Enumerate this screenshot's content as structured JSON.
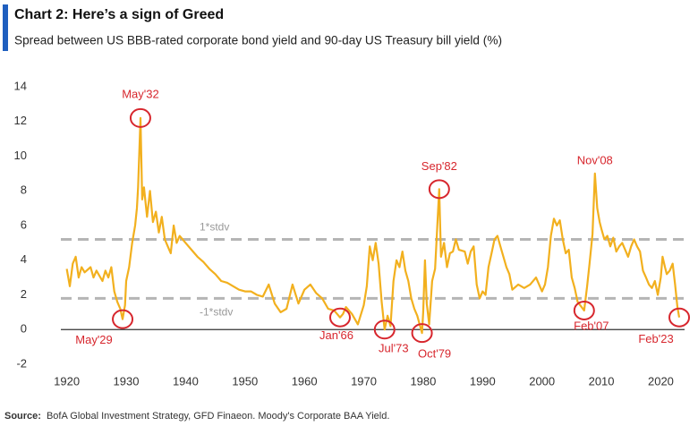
{
  "chart_data": {
    "type": "line",
    "title": "Chart 2: Here’s a sign of Greed",
    "subtitle": "Spread between US BBB-rated corporate bond yield and 90-day US Treasury bill yield (%)",
    "source_label": "Source:",
    "source": "BofA Global Investment Strategy, GFD Finaeon.  Moody's Corporate BAA Yield.",
    "xlim": [
      1919,
      2024
    ],
    "xticks": [
      1920,
      1930,
      1940,
      1950,
      1960,
      1970,
      1980,
      1990,
      2000,
      2010,
      2020
    ],
    "ylim": [
      -2,
      14
    ],
    "yticks": [
      -2,
      0,
      2,
      4,
      6,
      8,
      10,
      12,
      14
    ],
    "x": [
      1920,
      1920.5,
      1921,
      1921.5,
      1922,
      1922.5,
      1923,
      1924,
      1924.5,
      1925,
      1926,
      1926.5,
      1927,
      1927.5,
      1928,
      1928.5,
      1929,
      1929.4,
      1929.8,
      1930,
      1930.5,
      1931,
      1931.5,
      1931.8,
      1932,
      1932.4,
      1932.7,
      1933,
      1933.5,
      1934,
      1934.5,
      1935,
      1935.5,
      1936,
      1936.5,
      1937,
      1937.5,
      1938,
      1938.5,
      1939,
      1940,
      1941,
      1942,
      1943,
      1944,
      1945,
      1946,
      1947,
      1948,
      1949,
      1950,
      1951,
      1952,
      1953,
      1954,
      1955,
      1956,
      1957,
      1958,
      1959,
      1960,
      1961,
      1962,
      1963,
      1964,
      1965,
      1966,
      1966.5,
      1967,
      1968,
      1969,
      1970,
      1970.5,
      1971,
      1971.5,
      1972,
      1972.5,
      1973,
      1973.5,
      1974,
      1974.5,
      1975,
      1975.5,
      1976,
      1976.5,
      1977,
      1977.5,
      1978,
      1978.5,
      1979,
      1979.8,
      1980,
      1980.3,
      1980.6,
      1981,
      1981.5,
      1982,
      1982.7,
      1983,
      1983.5,
      1984,
      1984.5,
      1985,
      1985.5,
      1986,
      1987,
      1987.5,
      1988,
      1988.5,
      1989,
      1989.5,
      1990,
      1990.5,
      1991,
      1991.5,
      1992,
      1992.5,
      1993,
      1994,
      1994.5,
      1995,
      1996,
      1997,
      1998,
      1999,
      2000,
      2000.5,
      2001,
      2001.5,
      2002,
      2002.5,
      2003,
      2003.5,
      2004,
      2004.5,
      2005,
      2005.5,
      2006,
      2007.1,
      2007.6,
      2008,
      2008.5,
      2008.9,
      2009.3,
      2009.7,
      2010,
      2010.5,
      2011,
      2011.5,
      2012,
      2012.5,
      2013,
      2013.5,
      2014,
      2014.5,
      2015,
      2015.5,
      2016,
      2016.5,
      2017,
      2017.5,
      2018,
      2018.5,
      2019,
      2019.5,
      2020,
      2020.3,
      2020.7,
      2021,
      2021.5,
      2022,
      2022.4,
      2022.8,
      2023.1
    ],
    "series": [
      {
        "color": "#f2b01e",
        "values": [
          3.5,
          2.5,
          3.8,
          4.2,
          3.0,
          3.6,
          3.3,
          3.6,
          3.0,
          3.4,
          2.8,
          3.4,
          3.0,
          3.6,
          2.2,
          1.6,
          1.2,
          0.6,
          1.4,
          2.8,
          3.6,
          5.0,
          6.0,
          7.0,
          8.2,
          12.2,
          7.5,
          8.2,
          6.5,
          8.0,
          6.2,
          6.8,
          5.6,
          6.5,
          5.2,
          4.8,
          4.4,
          6.0,
          5.0,
          5.4,
          5.0,
          4.6,
          4.2,
          3.9,
          3.5,
          3.2,
          2.8,
          2.7,
          2.5,
          2.3,
          2.2,
          2.2,
          2.0,
          1.9,
          2.6,
          1.5,
          1.0,
          1.2,
          2.6,
          1.5,
          2.3,
          2.6,
          2.1,
          1.8,
          1.2,
          1.1,
          0.7,
          0.9,
          1.3,
          0.9,
          0.3,
          1.4,
          2.5,
          4.8,
          4.0,
          5.0,
          3.8,
          1.6,
          0.0,
          0.8,
          0.2,
          2.8,
          4.0,
          3.6,
          4.5,
          3.4,
          2.8,
          1.8,
          1.2,
          0.8,
          -0.2,
          1.0,
          4.0,
          1.5,
          0.3,
          2.8,
          3.5,
          8.1,
          4.2,
          5.0,
          3.6,
          4.4,
          4.5,
          5.2,
          4.6,
          4.5,
          3.8,
          4.5,
          4.8,
          2.6,
          1.8,
          2.2,
          2.0,
          3.6,
          4.4,
          5.2,
          5.4,
          4.8,
          3.6,
          3.2,
          2.3,
          2.6,
          2.4,
          2.6,
          3.0,
          2.2,
          2.6,
          3.6,
          5.4,
          6.4,
          6.0,
          6.3,
          5.2,
          4.4,
          4.6,
          3.0,
          2.4,
          1.6,
          1.1,
          2.5,
          3.8,
          5.5,
          9.0,
          7.0,
          6.2,
          5.8,
          5.2,
          5.4,
          4.8,
          5.3,
          4.5,
          4.8,
          5.0,
          4.6,
          4.2,
          4.8,
          5.2,
          4.8,
          4.5,
          3.4,
          3.0,
          2.6,
          2.4,
          2.8,
          2.0,
          3.0,
          4.2,
          3.6,
          3.2,
          3.4,
          3.8,
          2.6,
          1.3,
          0.7
        ]
      }
    ],
    "reference_lines": [
      {
        "label": "1*stdv",
        "value": 5.2,
        "color": "#b5b5b5"
      },
      {
        "label": "-1*stdv",
        "value": 1.8,
        "color": "#b5b5b5"
      }
    ],
    "annotation_color": "#d7262d",
    "annotations": [
      {
        "label": "May'32",
        "x": 1932.4,
        "y": 12.2,
        "circled": true
      },
      {
        "label": "May'29",
        "x": 1929.4,
        "y": 0.6,
        "circled": true
      },
      {
        "label": "Jan'66",
        "x": 1966,
        "y": 0.7,
        "circled": true
      },
      {
        "label": "Jul'73",
        "x": 1973.5,
        "y": 0.0,
        "circled": true
      },
      {
        "label": "Oct'79",
        "x": 1979.8,
        "y": -0.2,
        "circled": true
      },
      {
        "label": "Sep'82",
        "x": 1982.7,
        "y": 8.1,
        "circled": true
      },
      {
        "label": "Nov'08",
        "x": 2008.9,
        "y": 9.0,
        "circled": false
      },
      {
        "label": "Feb'07",
        "x": 2007.1,
        "y": 1.1,
        "circled": true
      },
      {
        "label": "Feb'23",
        "x": 2023.1,
        "y": 0.7,
        "circled": true
      }
    ]
  }
}
